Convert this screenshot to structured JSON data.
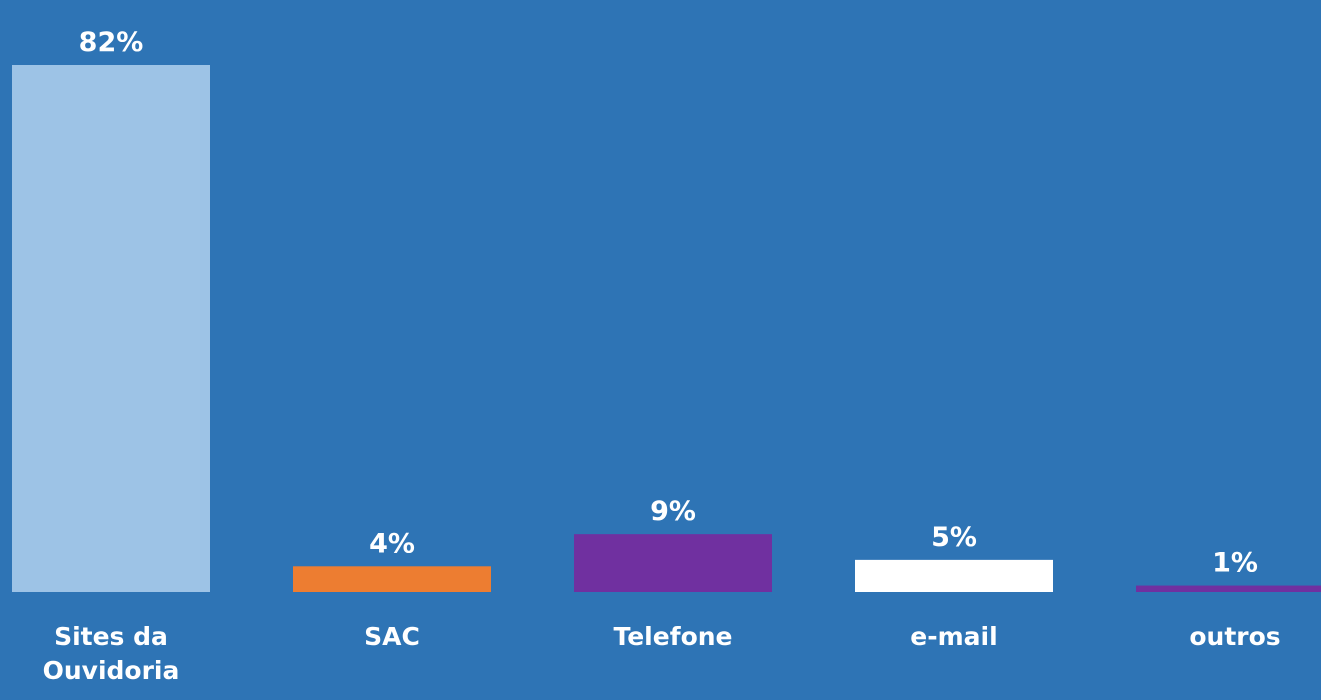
{
  "chart_data": {
    "type": "bar",
    "categories": [
      "Sites da Ouvidoria",
      "SAC",
      "Telefone",
      "e-mail",
      "outros"
    ],
    "values": [
      82,
      4,
      9,
      5,
      1
    ],
    "value_labels": [
      "82%",
      "4%",
      "9%",
      "5%",
      "1%"
    ],
    "colors": [
      "#9dc3e6",
      "#ed7d31",
      "#7030a0",
      "#ffffff",
      "#7030a0"
    ]
  }
}
